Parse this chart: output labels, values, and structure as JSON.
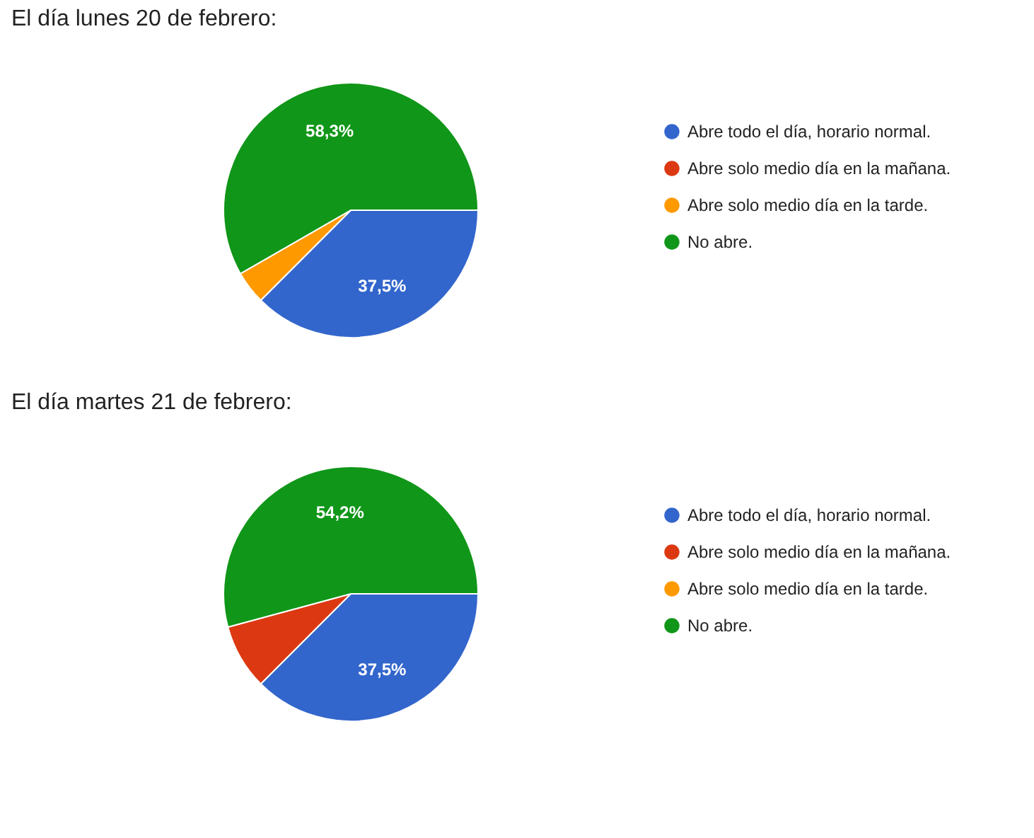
{
  "chart_data": [
    {
      "type": "pie",
      "title": "El día lunes 20 de febrero:",
      "categories": [
        "Abre todo el día, horario normal.",
        "Abre solo medio día en la mañana.",
        "Abre solo medio día en la tarde.",
        "No abre."
      ],
      "values": [
        37.5,
        0,
        4.2,
        58.3
      ],
      "colors": [
        "#3366cc",
        "#dc3912",
        "#ff9900",
        "#109618"
      ],
      "value_labels": [
        "37,5%",
        null,
        null,
        "58,3%"
      ],
      "legend": "right"
    },
    {
      "type": "pie",
      "title": "El día martes 21 de febrero:",
      "categories": [
        "Abre todo el día, horario normal.",
        "Abre solo medio día en la mañana.",
        "Abre solo medio día en la tarde.",
        "No abre."
      ],
      "values": [
        37.5,
        8.3,
        0,
        54.2
      ],
      "colors": [
        "#3366cc",
        "#dc3912",
        "#ff9900",
        "#109618"
      ],
      "value_labels": [
        "37,5%",
        null,
        null,
        "54,2%"
      ],
      "legend": "right"
    }
  ]
}
